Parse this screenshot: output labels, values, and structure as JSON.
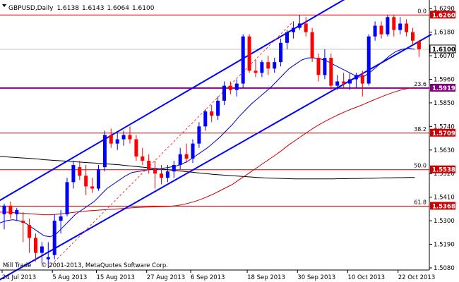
{
  "chart_data": {
    "type": "candlestick",
    "symbol": "GBPUSD",
    "timeframe": "Daily",
    "ohlc_header": [
      "1.6138",
      "1.6143",
      "1.6064",
      "1.6100"
    ],
    "copyright": "© 2001-2013, MetaQuotes Software Corp.",
    "watermark": "Mill Trade",
    "y_range": [
      1.507,
      1.633
    ],
    "y_ticks": [
      "1.6290",
      "1.6180",
      "1.6070",
      "1.5960",
      "1.5850",
      "1.5740",
      "1.5630",
      "1.5520",
      "1.5410",
      "1.5300",
      "1.5190",
      "1.5080"
    ],
    "x_tick_labels": [
      "24 Jul 2013",
      "5 Aug 2013",
      "15 Aug 2013",
      "27 Aug 2013",
      "6 Sep 2013",
      "18 Sep 2013",
      "30 Sep 2013",
      "10 Oct 2013",
      "22 Oct 2013"
    ],
    "current_price": "1.6100",
    "fib_levels": [
      {
        "ratio": "0.0",
        "price": 1.626,
        "price_label": "1.6260"
      },
      {
        "ratio": "23.6",
        "price": 1.5919,
        "price_label": "1.5919"
      },
      {
        "ratio": "38.2",
        "price": 1.5709,
        "price_label": "1.5709"
      },
      {
        "ratio": "50.0",
        "price": 1.5538,
        "price_label": "1.5538"
      },
      {
        "ratio": "61.8",
        "price": 1.5368,
        "price_label": "1.5368"
      }
    ],
    "candles": [
      [
        1.533,
        1.538,
        1.526,
        1.537
      ],
      [
        1.537,
        1.539,
        1.531,
        1.533
      ],
      [
        1.533,
        1.536,
        1.53,
        1.535
      ],
      [
        1.53,
        1.534,
        1.52,
        1.529
      ],
      [
        1.528,
        1.531,
        1.515,
        1.522
      ],
      [
        1.522,
        1.524,
        1.511,
        1.515
      ],
      [
        1.515,
        1.52,
        1.51,
        1.518
      ],
      [
        1.512,
        1.52,
        1.508,
        1.513
      ],
      [
        1.514,
        1.533,
        1.512,
        1.53
      ],
      [
        1.53,
        1.535,
        1.524,
        1.532
      ],
      [
        1.533,
        1.55,
        1.532,
        1.548
      ],
      [
        1.548,
        1.558,
        1.545,
        1.556
      ],
      [
        1.555,
        1.558,
        1.549,
        1.551
      ],
      [
        1.551,
        1.556,
        1.542,
        1.546
      ],
      [
        1.546,
        1.55,
        1.543,
        1.545
      ],
      [
        1.545,
        1.556,
        1.544,
        1.554
      ],
      [
        1.555,
        1.572,
        1.553,
        1.57
      ],
      [
        1.57,
        1.573,
        1.564,
        1.566
      ],
      [
        1.566,
        1.571,
        1.563,
        1.568
      ],
      [
        1.568,
        1.572,
        1.565,
        1.57
      ],
      [
        1.57,
        1.574,
        1.566,
        1.568
      ],
      [
        1.568,
        1.57,
        1.558,
        1.56
      ],
      [
        1.56,
        1.564,
        1.556,
        1.558
      ],
      [
        1.558,
        1.561,
        1.552,
        1.554
      ],
      [
        1.554,
        1.558,
        1.545,
        1.552
      ],
      [
        1.552,
        1.556,
        1.547,
        1.55
      ],
      [
        1.55,
        1.556,
        1.548,
        1.553
      ],
      [
        1.553,
        1.558,
        1.55,
        1.556
      ],
      [
        1.556,
        1.564,
        1.554,
        1.561
      ],
      [
        1.561,
        1.566,
        1.557,
        1.559
      ],
      [
        1.559,
        1.568,
        1.557,
        1.566
      ],
      [
        1.566,
        1.576,
        1.564,
        1.574
      ],
      [
        1.574,
        1.582,
        1.572,
        1.581
      ],
      [
        1.581,
        1.584,
        1.576,
        1.579
      ],
      [
        1.579,
        1.588,
        1.577,
        1.586
      ],
      [
        1.586,
        1.595,
        1.584,
        1.593
      ],
      [
        1.593,
        1.595,
        1.589,
        1.591
      ],
      [
        1.591,
        1.596,
        1.588,
        1.594
      ],
      [
        1.594,
        1.617,
        1.592,
        1.616
      ],
      [
        1.616,
        1.617,
        1.599,
        1.6
      ],
      [
        1.6,
        1.605,
        1.597,
        1.599
      ],
      [
        1.599,
        1.605,
        1.597,
        1.604
      ],
      [
        1.604,
        1.607,
        1.598,
        1.601
      ],
      [
        1.601,
        1.606,
        1.599,
        1.604
      ],
      [
        1.604,
        1.615,
        1.602,
        1.613
      ],
      [
        1.613,
        1.619,
        1.61,
        1.618
      ],
      [
        1.618,
        1.623,
        1.615,
        1.62
      ],
      [
        1.62,
        1.626,
        1.619,
        1.622
      ],
      [
        1.622,
        1.625,
        1.616,
        1.618
      ],
      [
        1.618,
        1.62,
        1.604,
        1.606
      ],
      [
        1.606,
        1.608,
        1.595,
        1.598
      ],
      [
        1.598,
        1.61,
        1.596,
        1.606
      ],
      [
        1.606,
        1.608,
        1.591,
        1.593
      ],
      [
        1.593,
        1.598,
        1.591,
        1.595
      ],
      [
        1.595,
        1.599,
        1.592,
        1.594
      ],
      [
        1.594,
        1.599,
        1.591,
        1.596
      ],
      [
        1.596,
        1.599,
        1.592,
        1.598
      ],
      [
        1.598,
        1.6,
        1.588,
        1.594
      ],
      [
        1.594,
        1.617,
        1.593,
        1.616
      ],
      [
        1.616,
        1.623,
        1.614,
        1.621
      ],
      [
        1.621,
        1.623,
        1.615,
        1.617
      ],
      [
        1.617,
        1.626,
        1.616,
        1.625
      ],
      [
        1.625,
        1.626,
        1.616,
        1.619
      ],
      [
        1.619,
        1.625,
        1.617,
        1.622
      ],
      [
        1.622,
        1.624,
        1.616,
        1.618
      ],
      [
        1.618,
        1.62,
        1.612,
        1.614
      ],
      [
        1.6138,
        1.6143,
        1.6064,
        1.61
      ]
    ],
    "channel": {
      "lower": [
        [
          -1,
          1.502
        ],
        [
          68,
          1.617
        ]
      ],
      "upper": [
        [
          -1,
          1.539
        ],
        [
          68,
          1.657
        ]
      ]
    },
    "ma_fast": [
      1.529,
      1.53,
      1.5305,
      1.53,
      1.529,
      1.527,
      1.525,
      1.523,
      1.5225,
      1.524,
      1.527,
      1.53,
      1.533,
      1.535,
      1.537,
      1.539,
      1.542,
      1.545,
      1.547,
      1.549,
      1.551,
      1.5525,
      1.553,
      1.5535,
      1.554,
      1.554,
      1.5545,
      1.555,
      1.5555,
      1.5565,
      1.558,
      1.56,
      1.562,
      1.564,
      1.5665,
      1.569,
      1.572,
      1.575,
      1.5785,
      1.5815,
      1.5845,
      1.587,
      1.5895,
      1.592,
      1.595,
      1.598,
      1.601,
      1.603,
      1.605,
      1.606,
      1.606,
      1.6055,
      1.6045,
      1.603,
      1.6015,
      1.6,
      1.5985,
      1.597,
      1.5975,
      1.5995,
      1.602,
      1.6045,
      1.607,
      1.609,
      1.61,
      1.6105,
      1.61
    ],
    "ma_mid": [
      1.534,
      1.534,
      1.5338,
      1.5336,
      1.5334,
      1.5332,
      1.533,
      1.5328,
      1.5328,
      1.533,
      1.5333,
      1.5336,
      1.534,
      1.5343,
      1.5346,
      1.5348,
      1.535,
      1.5352,
      1.5354,
      1.5356,
      1.5358,
      1.536,
      1.5362,
      1.5363,
      1.5364,
      1.5365,
      1.5366,
      1.5367,
      1.537,
      1.5375,
      1.5382,
      1.539,
      1.54,
      1.5412,
      1.5425,
      1.544,
      1.5455,
      1.547,
      1.549,
      1.551,
      1.553,
      1.555,
      1.557,
      1.559,
      1.561,
      1.5632,
      1.5655,
      1.5675,
      1.5695,
      1.5715,
      1.5735,
      1.5752,
      1.5768,
      1.5783,
      1.5797,
      1.581,
      1.5822,
      1.5833,
      1.5845,
      1.5858,
      1.587,
      1.5882,
      1.5893,
      1.5903,
      1.5912,
      1.5918,
      1.5922
    ],
    "ma_slow": [
      1.56,
      1.5598,
      1.5596,
      1.5594,
      1.5592,
      1.559,
      1.5588,
      1.5585,
      1.5583,
      1.5581,
      1.5579,
      1.5577,
      1.5575,
      1.5573,
      1.5571,
      1.5569,
      1.5567,
      1.5565,
      1.5563,
      1.5561,
      1.5558,
      1.5555,
      1.5552,
      1.5549,
      1.5546,
      1.5543,
      1.554,
      1.5537,
      1.5534,
      1.5531,
      1.5528,
      1.5525,
      1.5522,
      1.5519,
      1.5516,
      1.5514,
      1.5512,
      1.551,
      1.5508,
      1.5506,
      1.5504,
      1.5502,
      1.55,
      1.5499,
      1.5498,
      1.5497,
      1.5496,
      1.5495,
      1.5495,
      1.5495,
      1.5495,
      1.5495,
      1.5495,
      1.5495,
      1.5496,
      1.5496,
      1.5497,
      1.5497,
      1.5498,
      1.5498,
      1.5499,
      1.55,
      1.55,
      1.5501,
      1.5501,
      1.5502,
      1.5502
    ],
    "colors": {
      "bull": "#0000ff",
      "bear": "#ff0000",
      "channel": "#0000ff",
      "fib": "#cc0000",
      "fib_23": "#800080",
      "ma_fast": "#0000cc",
      "ma_mid": "#cc0000",
      "ma_slow": "#000000",
      "trend_dash": "#ff3333",
      "tag_bg": "#cc0000",
      "fib23_tag_bg": "#800080"
    }
  }
}
